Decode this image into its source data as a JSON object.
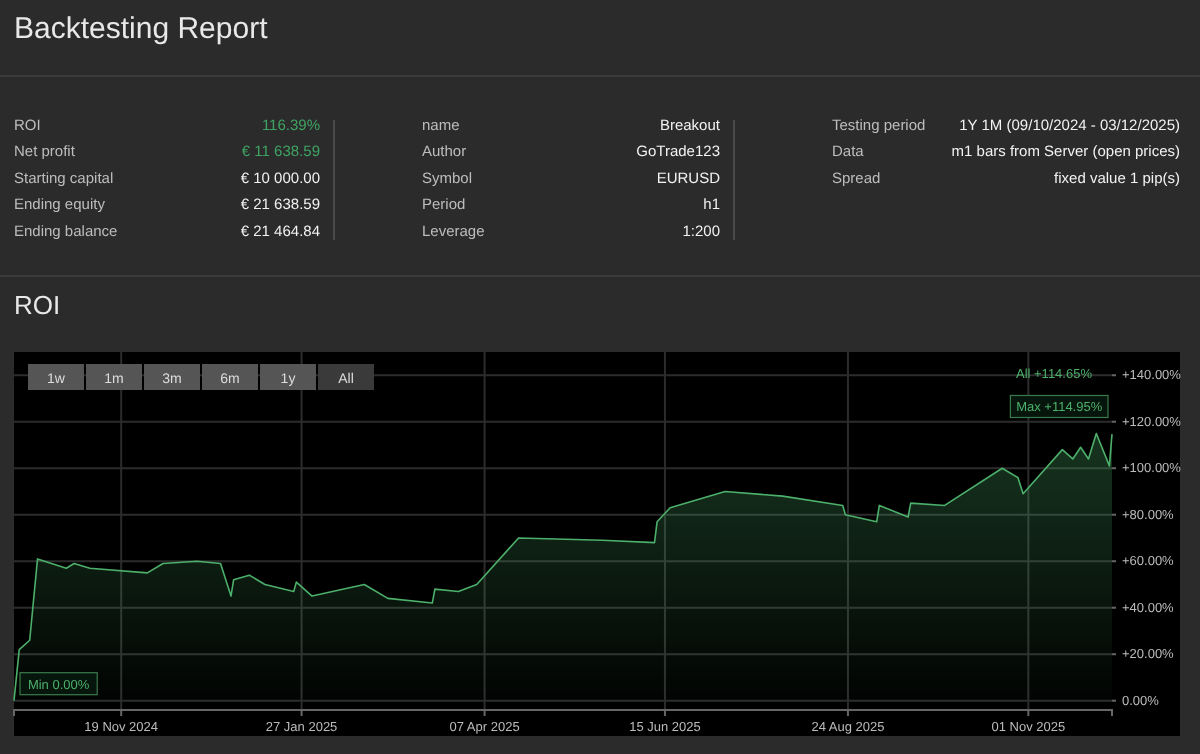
{
  "chart_data": [
    {
      "type": "other",
      "title": "Backtesting Report",
      "annotations": [
        "ROI",
        "116.39%",
        "Net profit",
        "€ 11 638.59",
        "Starting capital",
        "€ 10 000.00",
        "Ending equity",
        "€ 21 638.59",
        "Ending balance",
        "€ 21 464.84",
        "name",
        "Breakout",
        "Author",
        "GoTrade123",
        "Symbol",
        "EURUSD",
        "Period",
        "h1",
        "Leverage",
        "1:200",
        "Testing period",
        "1Y 1M (09/10/2024 - 03/12/2025)",
        "Data",
        "m1 bars from Server (open prices)",
        "Spread",
        "fixed value 1 pip(s)"
      ]
    },
    {
      "type": "area",
      "title": "ROI",
      "grid": true,
      "x": [
        "2024-10-09",
        "2024-10-11",
        "2024-10-15",
        "2024-10-18",
        "2024-10-29",
        "2024-11-01",
        "2024-11-07",
        "2024-11-29",
        "2024-12-05",
        "2024-12-18",
        "2024-12-27",
        "2024-12-31",
        "2025-01-01",
        "2025-01-07",
        "2025-01-13",
        "2025-01-24",
        "2025-01-25",
        "2025-01-31",
        "2025-02-20",
        "2025-03-01",
        "2025-03-18",
        "2025-03-19",
        "2025-03-28",
        "2025-04-04",
        "2025-04-20",
        "2025-05-22",
        "2025-06-11",
        "2025-06-12",
        "2025-06-17",
        "2025-07-08",
        "2025-07-30",
        "2025-08-22",
        "2025-08-23",
        "2025-09-04",
        "2025-09-05",
        "2025-09-16",
        "2025-09-17",
        "2025-09-30",
        "2025-10-22",
        "2025-10-28",
        "2025-10-30",
        "2025-11-14",
        "2025-11-18",
        "2025-11-21",
        "2025-11-24",
        "2025-11-27",
        "2025-12-02",
        "2025-12-03"
      ],
      "series": [
        {
          "color": "#4caf6a",
          "values": [
            0,
            22,
            26,
            61,
            57,
            59,
            57,
            55,
            59,
            60,
            59,
            45,
            52,
            54,
            50,
            47,
            51,
            45,
            50,
            44,
            42,
            48,
            47,
            50,
            70,
            69,
            68,
            77,
            83,
            90,
            88,
            84,
            80,
            77,
            84,
            79,
            85,
            84,
            100,
            96,
            89,
            108,
            104,
            109,
            104,
            114.95,
            101,
            114.65
          ]
        }
      ],
      "xlim": [
        "2024-10-09",
        "2025-12-03"
      ],
      "xticks": [
        {
          "value": "2024-11-19",
          "label": "19 Nov 2024"
        },
        {
          "value": "2025-01-27",
          "label": "27 Jan 2025"
        },
        {
          "value": "2025-04-07",
          "label": "07 Apr 2025"
        },
        {
          "value": "2025-06-15",
          "label": "15 Jun 2025"
        },
        {
          "value": "2025-08-24",
          "label": "24 Aug 2025"
        },
        {
          "value": "2025-11-01",
          "label": "01 Nov 2025"
        }
      ],
      "ylim": [
        -4,
        150
      ],
      "yticks": [
        {
          "value": 0,
          "label": "0.00%"
        },
        {
          "value": 20,
          "label": "+20.00%"
        },
        {
          "value": 40,
          "label": "+40.00%"
        },
        {
          "value": 60,
          "label": "+60.00%"
        },
        {
          "value": 80,
          "label": "+80.00%"
        },
        {
          "value": 100,
          "label": "+100.00%"
        },
        {
          "value": 120,
          "label": "+120.00%"
        },
        {
          "value": 140,
          "label": "+140.00%"
        }
      ],
      "annotations": [
        "1w",
        "1m",
        "3m",
        "6m",
        "1y",
        "All",
        "All +114.65%",
        {
          "text": "Max +114.95%",
          "x": "2025-11-27",
          "y": 114.95
        },
        {
          "text": "Min 0.00%",
          "x": "2024-10-09",
          "y": 0
        }
      ]
    }
  ]
}
